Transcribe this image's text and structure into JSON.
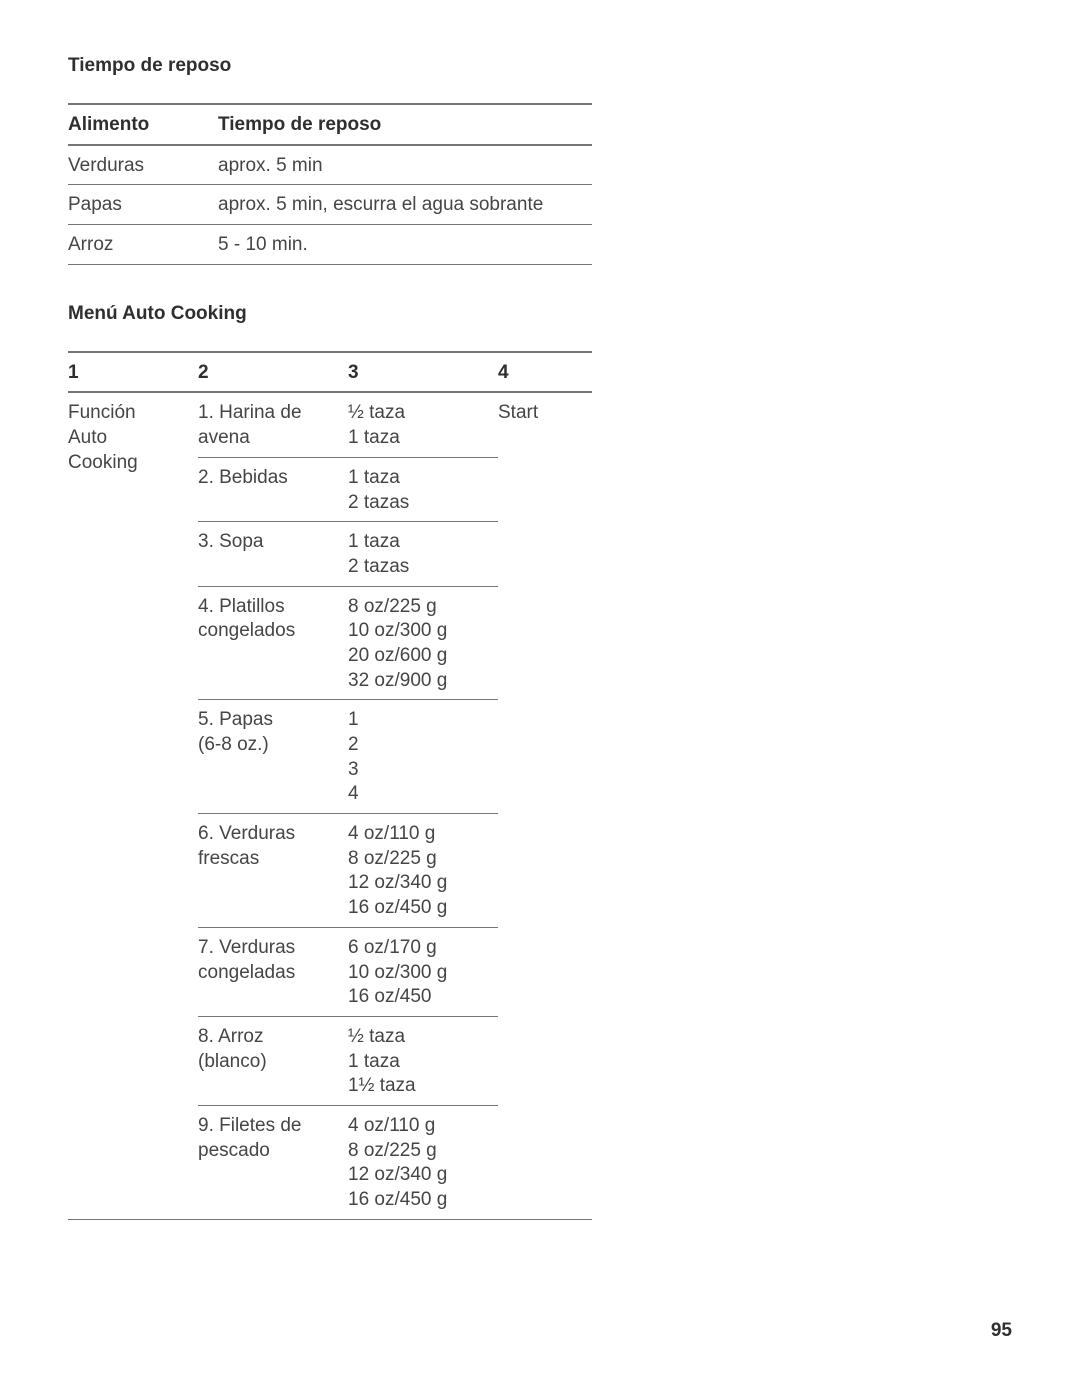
{
  "page_number": "95",
  "section1": {
    "title": "Tiempo de reposo",
    "headers": {
      "c1": "Alimento",
      "c2": "Tiempo de reposo"
    },
    "rows": [
      {
        "c1": "Verduras",
        "c2": "aprox. 5 min"
      },
      {
        "c1": "Papas",
        "c2": "aprox. 5 min, escurra el agua sobrante"
      },
      {
        "c1": "Arroz",
        "c2": "5 - 10 min."
      }
    ]
  },
  "section2": {
    "title": "Menú Auto Cooking",
    "headers": {
      "c1": "1",
      "c2": "2",
      "c3": "3",
      "c4": "4"
    },
    "col1_label": "Función\nAuto\nCooking",
    "col4_label": "Start",
    "rows": [
      {
        "c2": "1. Harina de\navena",
        "c3": "½ taza\n1 taza"
      },
      {
        "c2": "2. Bebidas",
        "c3": "1 taza\n2 tazas"
      },
      {
        "c2": "3. Sopa",
        "c3": "1 taza\n2 tazas"
      },
      {
        "c2": "4. Platillos\ncongelados",
        "c3": "8 oz/225 g\n10 oz/300 g\n20 oz/600 g\n32 oz/900 g"
      },
      {
        "c2": "5. Papas\n(6-8 oz.)",
        "c3": "1\n2\n3\n4"
      },
      {
        "c2": "6. Verduras\nfrescas",
        "c3": "4 oz/110 g\n8 oz/225 g\n12 oz/340 g\n16 oz/450 g"
      },
      {
        "c2": "7. Verduras\ncongeladas",
        "c3": "6 oz/170 g\n10 oz/300 g\n16 oz/450"
      },
      {
        "c2": "8. Arroz\n(blanco)",
        "c3": "½ taza\n1 taza\n1½ taza"
      },
      {
        "c2": "9. Filetes de\npescado",
        "c3": "4 oz/110 g\n8 oz/225 g\n12 oz/340 g\n16 oz/450 g"
      }
    ]
  }
}
